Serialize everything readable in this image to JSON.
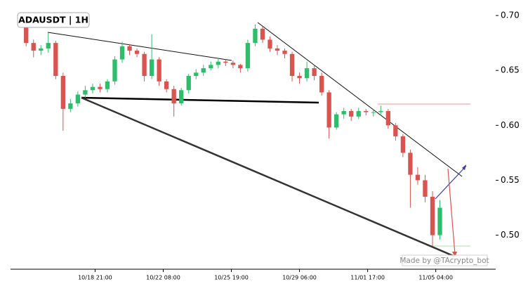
{
  "chart_data": {
    "type": "candlestick",
    "title": "ADAUSDT | 1H",
    "watermark": "Made by @TAcrypto_bot",
    "x": [
      "10/15 09:00",
      "10/15 18:00",
      "10/16 03:00",
      "10/16 12:00",
      "10/16 21:00",
      "10/17 06:00",
      "10/17 15:00",
      "10/18 00:00",
      "10/18 09:00",
      "10/18 18:00",
      "10/19 03:00",
      "10/19 12:00",
      "10/19 21:00",
      "10/20 06:00",
      "10/20 15:00",
      "10/21 00:00",
      "10/21 09:00",
      "10/21 18:00",
      "10/22 03:00",
      "10/22 12:00",
      "10/22 21:00",
      "10/23 06:00",
      "10/23 15:00",
      "10/24 00:00",
      "10/24 09:00",
      "10/24 18:00",
      "10/25 03:00",
      "10/25 12:00",
      "10/25 21:00",
      "10/26 06:00",
      "10/26 15:00",
      "10/27 00:00",
      "10/27 09:00",
      "10/27 18:00",
      "10/28 03:00",
      "10/28 12:00",
      "10/28 21:00",
      "10/29 06:00",
      "10/29 15:00",
      "10/30 00:00",
      "10/30 09:00",
      "10/30 18:00",
      "10/31 03:00",
      "10/31 12:00",
      "10/31 21:00",
      "11/01 06:00",
      "11/01 15:00",
      "11/02 00:00",
      "11/02 09:00",
      "11/02 18:00",
      "11/03 03:00",
      "11/03 12:00",
      "11/03 21:00",
      "11/04 06:00",
      "11/04 15:00",
      "11/05 00:00",
      "11/05 09:00"
    ],
    "open": [
      0.69,
      0.675,
      0.668,
      0.67,
      0.675,
      0.645,
      0.615,
      0.62,
      0.628,
      0.632,
      0.635,
      0.633,
      0.64,
      0.66,
      0.672,
      0.668,
      0.665,
      0.645,
      0.66,
      0.64,
      0.633,
      0.62,
      0.632,
      0.645,
      0.648,
      0.652,
      0.655,
      0.658,
      0.657,
      0.655,
      0.652,
      0.675,
      0.688,
      0.678,
      0.67,
      0.668,
      0.665,
      0.645,
      0.643,
      0.652,
      0.645,
      0.63,
      0.598,
      0.61,
      0.613,
      0.608,
      0.613,
      0.612,
      0.612,
      0.613,
      0.6,
      0.59,
      0.575,
      0.555,
      0.55,
      0.535,
      0.5
    ],
    "high": [
      0.692,
      0.678,
      0.673,
      0.684,
      0.677,
      0.648,
      0.624,
      0.631,
      0.636,
      0.638,
      0.638,
      0.642,
      0.663,
      0.676,
      0.674,
      0.67,
      0.667,
      0.683,
      0.662,
      0.642,
      0.636,
      0.634,
      0.647,
      0.651,
      0.655,
      0.658,
      0.661,
      0.66,
      0.659,
      0.656,
      0.678,
      0.692,
      0.69,
      0.681,
      0.673,
      0.67,
      0.667,
      0.648,
      0.658,
      0.655,
      0.648,
      0.632,
      0.612,
      0.616,
      0.615,
      0.616,
      0.615,
      0.615,
      0.618,
      0.615,
      0.602,
      0.592,
      0.578,
      0.562,
      0.555,
      0.54,
      0.532
    ],
    "low": [
      0.672,
      0.662,
      0.664,
      0.666,
      0.642,
      0.595,
      0.612,
      0.617,
      0.625,
      0.629,
      0.63,
      0.63,
      0.637,
      0.657,
      0.664,
      0.662,
      0.64,
      0.642,
      0.636,
      0.63,
      0.608,
      0.618,
      0.629,
      0.642,
      0.645,
      0.65,
      0.652,
      0.654,
      0.652,
      0.648,
      0.649,
      0.672,
      0.675,
      0.667,
      0.664,
      0.661,
      0.64,
      0.638,
      0.64,
      0.641,
      0.627,
      0.588,
      0.596,
      0.606,
      0.604,
      0.606,
      0.609,
      0.608,
      0.609,
      0.597,
      0.586,
      0.571,
      0.525,
      0.546,
      0.53,
      0.49,
      0.496
    ],
    "close": [
      0.675,
      0.668,
      0.67,
      0.675,
      0.645,
      0.615,
      0.62,
      0.628,
      0.632,
      0.635,
      0.633,
      0.64,
      0.66,
      0.672,
      0.668,
      0.665,
      0.645,
      0.66,
      0.64,
      0.633,
      0.62,
      0.632,
      0.645,
      0.648,
      0.652,
      0.655,
      0.658,
      0.657,
      0.655,
      0.652,
      0.675,
      0.688,
      0.678,
      0.67,
      0.668,
      0.665,
      0.645,
      0.643,
      0.652,
      0.645,
      0.63,
      0.598,
      0.61,
      0.613,
      0.608,
      0.613,
      0.612,
      0.612,
      0.613,
      0.6,
      0.59,
      0.575,
      0.555,
      0.55,
      0.535,
      0.5,
      0.525
    ],
    "up_color": "#2ebd6b",
    "down_color": "#d9534f",
    "xlim": [
      "10/14 14:00",
      "11/08 05:00"
    ],
    "xticks": [
      "10/18 21:00",
      "10/22 08:00",
      "10/25 19:00",
      "10/29 06:00",
      "11/01 17:00",
      "11/05 04:00"
    ],
    "ylim": [
      0.469,
      0.709
    ],
    "yticks": [
      {
        "value": 0.5,
        "label": "0.50"
      },
      {
        "value": 0.55,
        "label": "0.55"
      },
      {
        "value": 0.6,
        "label": "0.60"
      },
      {
        "value": 0.65,
        "label": "0.65"
      },
      {
        "value": 0.7,
        "label": "0.70"
      }
    ]
  }
}
